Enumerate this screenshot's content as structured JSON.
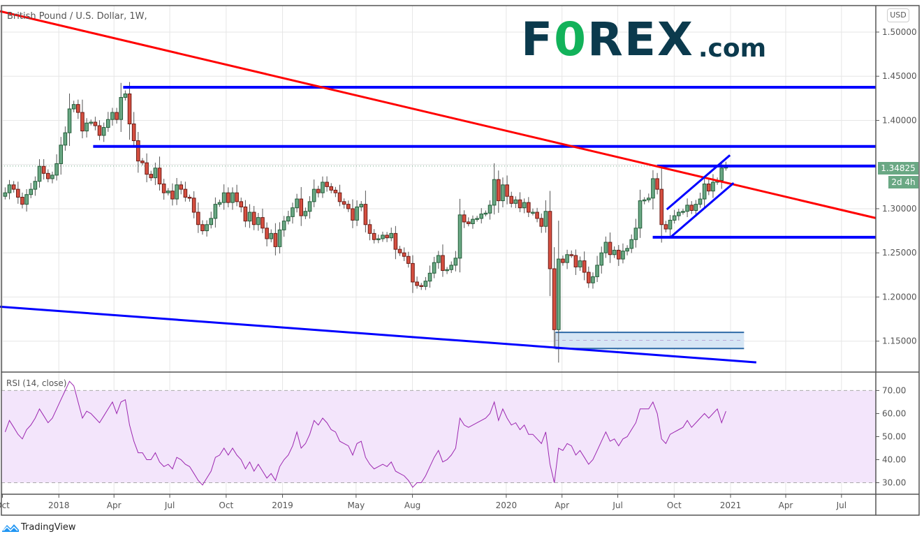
{
  "header": {
    "symbol_title": "British Pound / U.S. Dollar, 1W,",
    "currency_button": "USD"
  },
  "logo": {
    "text_main_1": "F",
    "text_o": "0",
    "text_main_2": "REX",
    "text_com": ".com"
  },
  "footer": {
    "brand": "TradingView"
  },
  "price_label": {
    "last_price": "1.34825",
    "countdown": "2d 4h"
  },
  "rsi": {
    "title": "RSI (14, close)"
  },
  "colors": {
    "up": "#6aa884",
    "up_border": "#225c38",
    "down": "#d64f40",
    "down_border": "#6b1a14",
    "trendline_red": "#ff0000",
    "levels_blue": "#0000ff",
    "rsi_line": "#9c27b0",
    "rsi_band": "#f3e5fb",
    "box_fill": "#d6e6f5",
    "box_border": "#2e6aa6"
  },
  "chart_data": [
    {
      "type": "candlestick",
      "title": "British Pound / U.S. Dollar, 1W,",
      "interval": "1W",
      "first_week": "2017-10-02",
      "closes": [
        1.318,
        1.327,
        1.322,
        1.313,
        1.305,
        1.316,
        1.322,
        1.331,
        1.348,
        1.34,
        1.334,
        1.338,
        1.351,
        1.372,
        1.386,
        1.413,
        1.418,
        1.409,
        1.388,
        1.397,
        1.398,
        1.394,
        1.383,
        1.392,
        1.401,
        1.409,
        1.401,
        1.426,
        1.43,
        1.396,
        1.377,
        1.354,
        1.352,
        1.339,
        1.335,
        1.346,
        1.328,
        1.318,
        1.32,
        1.311,
        1.327,
        1.322,
        1.313,
        1.312,
        1.296,
        1.282,
        1.275,
        1.282,
        1.289,
        1.305,
        1.307,
        1.318,
        1.307,
        1.318,
        1.308,
        1.302,
        1.286,
        1.296,
        1.282,
        1.29,
        1.278,
        1.266,
        1.272,
        1.257,
        1.276,
        1.286,
        1.291,
        1.301,
        1.311,
        1.292,
        1.297,
        1.308,
        1.322,
        1.318,
        1.33,
        1.325,
        1.321,
        1.318,
        1.308,
        1.305,
        1.3,
        1.287,
        1.302,
        1.305,
        1.282,
        1.272,
        1.265,
        1.266,
        1.27,
        1.267,
        1.272,
        1.254,
        1.25,
        1.246,
        1.238,
        1.217,
        1.213,
        1.212,
        1.218,
        1.227,
        1.239,
        1.247,
        1.23,
        1.231,
        1.236,
        1.244,
        1.293,
        1.285,
        1.283,
        1.288,
        1.289,
        1.294,
        1.295,
        1.304,
        1.333,
        1.309,
        1.327,
        1.314,
        1.306,
        1.31,
        1.301,
        1.307,
        1.296,
        1.296,
        1.289,
        1.28,
        1.297,
        1.232,
        1.163,
        1.243,
        1.239,
        1.248,
        1.247,
        1.234,
        1.241,
        1.228,
        1.216,
        1.223,
        1.236,
        1.25,
        1.262,
        1.248,
        1.253,
        1.243,
        1.252,
        1.255,
        1.265,
        1.278,
        1.309,
        1.31,
        1.312,
        1.334,
        1.322,
        1.282,
        1.277,
        1.287,
        1.292,
        1.296,
        1.297,
        1.304,
        1.298,
        1.305,
        1.311,
        1.328,
        1.32,
        1.33,
        1.332,
        1.346,
        1.348
      ],
      "x_range": [
        "2017-09-27",
        "2021-08-26"
      ],
      "y_range": [
        1.115,
        1.53
      ],
      "y_ticks": [
        "1.50000",
        "1.45000",
        "1.40000",
        "1.30000",
        "1.25000",
        "1.20000",
        "1.15000"
      ],
      "y_tick_values": [
        1.5,
        1.45,
        1.4,
        1.3,
        1.25,
        1.2,
        1.15
      ],
      "x_ticks": [
        {
          "label": "Oct",
          "date": "2017-10-01"
        },
        {
          "label": "2018",
          "date": "2018-01-01"
        },
        {
          "label": "Apr",
          "date": "2018-04-01"
        },
        {
          "label": "Jul",
          "date": "2018-07-01"
        },
        {
          "label": "Oct",
          "date": "2018-10-01"
        },
        {
          "label": "2019",
          "date": "2019-01-01"
        },
        {
          "label": "May",
          "date": "2019-05-01"
        },
        {
          "label": "Aug",
          "date": "2019-08-01"
        },
        {
          "label": "2020",
          "date": "2020-01-01"
        },
        {
          "label": "Apr",
          "date": "2020-04-01"
        },
        {
          "label": "Jul",
          "date": "2020-07-01"
        },
        {
          "label": "Oct",
          "date": "2020-10-01"
        },
        {
          "label": "2021",
          "date": "2021-01-01"
        },
        {
          "label": "Apr",
          "date": "2021-04-01"
        },
        {
          "label": "Jul",
          "date": "2021-07-01"
        }
      ],
      "last_price_line": 1.34825,
      "grid": true,
      "drawings": {
        "trendlines": [
          {
            "name": "red-downtrend",
            "color": "#ff0000",
            "from": [
              "2017-09-27",
              1.5236
            ],
            "to": [
              "2021-08-26",
              1.2894
            ]
          },
          {
            "name": "blue-lower-support",
            "color": "#0000ff",
            "from": [
              "2017-09-27",
              1.189
            ],
            "to": [
              "2021-02-12",
              1.126
            ]
          },
          {
            "name": "channel-upper",
            "color": "#0000ff",
            "from": [
              "2020-09-19",
              1.2992
            ],
            "to": [
              "2020-12-31",
              1.3606
            ]
          },
          {
            "name": "channel-lower",
            "color": "#0000ff",
            "from": [
              "2020-09-25",
              1.2677
            ],
            "to": [
              "2021-01-06",
              1.3291
            ]
          }
        ],
        "horizontal_levels": [
          {
            "price": 1.4375,
            "from": "2018-04-16"
          },
          {
            "price": 1.3705,
            "from": "2018-02-26"
          },
          {
            "price": 1.3483,
            "from": "2020-09-03"
          },
          {
            "price": 1.2677,
            "from": "2020-08-27"
          }
        ],
        "range_box": {
          "from": "2020-03-21",
          "to": "2021-01-23",
          "top": 1.16,
          "bottom": 1.1417,
          "mid": 1.151
        }
      }
    },
    {
      "type": "line",
      "title": "RSI (14, close)",
      "y_range": [
        25,
        78
      ],
      "y_ticks": [
        "70.00",
        "60.00",
        "50.00",
        "40.00",
        "30.00"
      ],
      "y_tick_values": [
        70,
        60,
        50,
        40,
        30
      ],
      "band": [
        30,
        70
      ],
      "values": [
        52,
        57,
        54,
        51,
        49,
        53,
        55,
        58,
        62,
        59,
        56,
        58,
        62,
        66,
        70,
        74,
        72,
        65,
        58,
        61,
        60,
        58,
        56,
        59,
        62,
        65,
        60,
        65,
        66,
        55,
        48,
        43,
        43,
        40,
        40,
        43,
        39,
        37,
        38,
        36,
        41,
        40,
        38,
        37,
        34,
        31,
        29,
        32,
        35,
        41,
        42,
        45,
        42,
        45,
        42,
        40,
        36,
        39,
        35,
        38,
        35,
        32,
        34,
        31,
        37,
        40,
        42,
        46,
        52,
        45,
        47,
        51,
        57,
        55,
        58,
        56,
        53,
        52,
        48,
        47,
        46,
        42,
        47,
        48,
        41,
        38,
        36,
        37,
        38,
        37,
        39,
        35,
        34,
        33,
        31,
        28,
        30,
        30,
        33,
        37,
        41,
        44,
        39,
        40,
        42,
        45,
        58,
        55,
        54,
        55,
        56,
        57,
        58,
        60,
        65,
        57,
        62,
        58,
        55,
        56,
        53,
        55,
        51,
        51,
        49,
        47,
        52,
        38,
        30,
        45,
        44,
        47,
        46,
        42,
        44,
        41,
        38,
        40,
        44,
        48,
        52,
        48,
        49,
        46,
        49,
        50,
        53,
        56,
        62,
        62,
        62,
        65,
        60,
        49,
        47,
        51,
        52,
        53,
        54,
        57,
        54,
        56,
        58,
        60,
        58,
        60,
        62,
        56,
        61
      ]
    }
  ]
}
